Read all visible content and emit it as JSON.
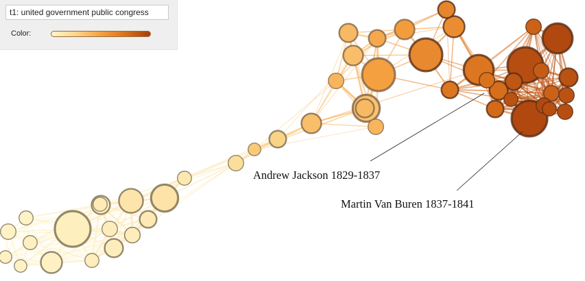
{
  "controls": {
    "topic": "t1: united government public congress",
    "color_label": "Color:",
    "gradient": [
      "#fff5cc",
      "#fbd58a",
      "#f5a040",
      "#d9701c",
      "#a63e0c"
    ]
  },
  "annotations": [
    {
      "id": "jackson",
      "text": "Andrew Jackson 1829-1837",
      "node": "jackson"
    },
    {
      "id": "vanburen",
      "text": "Martin Van Buren 1837-1841",
      "node": "vanburen"
    }
  ],
  "network": {
    "nodes": [
      {
        "id": "a1",
        "t": 0.02,
        "w": 0.3
      },
      {
        "id": "a2",
        "t": 0.03,
        "w": 0.2
      },
      {
        "id": "a3",
        "t": 0.02,
        "w": 0.25
      },
      {
        "id": "a4",
        "t": 0.04,
        "w": 0.25
      },
      {
        "id": "a5",
        "t": 0.03,
        "w": 0.2
      },
      {
        "id": "a6",
        "t": 0.03,
        "w": 0.5
      },
      {
        "id": "a7",
        "t": 0.05,
        "w": 0.4
      },
      {
        "id": "a8",
        "t": 0.05,
        "w": 1.0
      },
      {
        "id": "a9",
        "t": 0.06,
        "w": 0.3
      },
      {
        "id": "a10",
        "t": 0.06,
        "w": 0.25
      },
      {
        "id": "a11",
        "t": 0.06,
        "w": 0.4
      },
      {
        "id": "a12",
        "t": 0.07,
        "w": 0.3
      },
      {
        "id": "a13",
        "t": 0.07,
        "w": 0.3
      },
      {
        "id": "a14",
        "t": 0.08,
        "w": 0.25
      },
      {
        "id": "a15",
        "t": 0.09,
        "w": 0.35
      },
      {
        "id": "a16",
        "t": 0.1,
        "w": 0.25
      },
      {
        "id": "a17",
        "t": 0.13,
        "w": 0.6
      },
      {
        "id": "a18",
        "t": 0.14,
        "w": 0.7
      },
      {
        "id": "a19",
        "t": 0.18,
        "w": 0.3
      },
      {
        "id": "a20",
        "t": 0.26,
        "w": 0.35
      },
      {
        "id": "a21",
        "t": 0.3,
        "w": 0.2
      },
      {
        "id": "a22",
        "t": 0.36,
        "w": 0.45
      },
      {
        "id": "a23",
        "t": 0.34,
        "w": 0.7
      },
      {
        "id": "a24",
        "t": 0.38,
        "w": 0.4
      },
      {
        "id": "a25",
        "t": 0.4,
        "w": 0.3
      },
      {
        "id": "a26",
        "t": 0.36,
        "w": 0.45
      },
      {
        "id": "a27",
        "t": 0.38,
        "w": 0.4
      },
      {
        "id": "a28",
        "t": 0.4,
        "w": 0.3
      },
      {
        "id": "a29",
        "t": 0.5,
        "w": 0.9
      },
      {
        "id": "a30",
        "t": 0.46,
        "w": 0.35
      },
      {
        "id": "a31",
        "t": 0.52,
        "w": 0.45
      },
      {
        "id": "a32",
        "t": 0.6,
        "w": 0.5
      },
      {
        "id": "a33",
        "t": 0.62,
        "w": 0.9
      },
      {
        "id": "a34",
        "t": 0.64,
        "w": 0.35
      },
      {
        "id": "a35",
        "t": 0.72,
        "w": 0.35
      },
      {
        "id": "a36",
        "t": 0.76,
        "w": 0.4
      },
      {
        "id": "jackson",
        "t": 0.72,
        "w": 0.8
      },
      {
        "id": "a38",
        "t": 0.74,
        "w": 0.3
      },
      {
        "id": "a39",
        "t": 0.78,
        "w": 0.35
      },
      {
        "id": "a40",
        "t": 0.92,
        "w": 1.0
      },
      {
        "id": "a41",
        "t": 0.95,
        "w": 0.8
      },
      {
        "id": "a42",
        "t": 0.82,
        "w": 0.3
      },
      {
        "id": "a43",
        "t": 0.9,
        "w": 0.4
      },
      {
        "id": "a44",
        "t": 0.9,
        "w": 0.25
      },
      {
        "id": "a45",
        "t": 0.82,
        "w": 0.3
      },
      {
        "id": "a46",
        "t": 0.85,
        "w": 0.3
      },
      {
        "id": "a47",
        "t": 0.9,
        "w": 0.3
      },
      {
        "id": "a48",
        "t": 0.92,
        "w": 0.3
      },
      {
        "id": "a49",
        "t": 0.88,
        "w": 0.35
      },
      {
        "id": "vanburen",
        "t": 0.95,
        "w": 1.0
      },
      {
        "id": "a51",
        "t": 0.95,
        "w": 0.3
      },
      {
        "id": "a52",
        "t": 0.92,
        "w": 0.25
      }
    ]
  }
}
